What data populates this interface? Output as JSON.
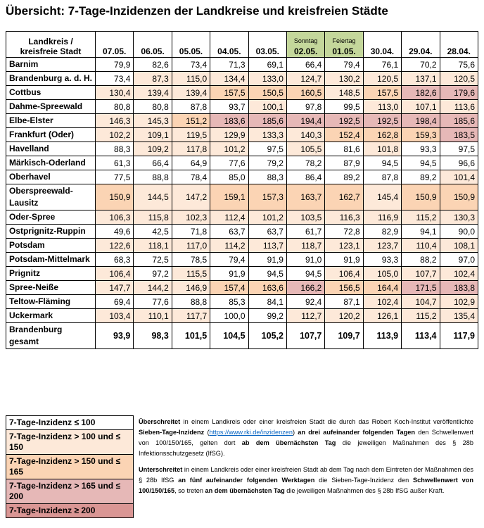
{
  "title": "Übersicht: 7-Tage-Inzidenzen der Landkreise und kreisfreien Städte",
  "table": {
    "header": "Landkreis / kreisfreie Stadt",
    "columns": [
      {
        "date": "07.05."
      },
      {
        "date": "06.05."
      },
      {
        "date": "05.05."
      },
      {
        "date": "04.05."
      },
      {
        "date": "03.05."
      },
      {
        "date": "02.05.",
        "note": "Sonntag",
        "color": "#c4d79b"
      },
      {
        "date": "01.05.",
        "note": "Feiertag",
        "color": "#c4d79b"
      },
      {
        "date": "30.04."
      },
      {
        "date": "29.04."
      },
      {
        "date": "28.04."
      }
    ],
    "rows": [
      {
        "name": "Barnim",
        "values": [
          "79,9",
          "82,6",
          "73,4",
          "71,3",
          "69,1",
          "66,4",
          "79,4",
          "76,1",
          "70,2",
          "75,6"
        ],
        "shades": [
          0,
          0,
          0,
          0,
          0,
          0,
          0,
          0,
          0,
          0
        ]
      },
      {
        "name": "Brandenburg a. d. H.",
        "values": [
          "73,4",
          "87,3",
          "115,0",
          "134,4",
          "133,0",
          "124,7",
          "130,2",
          "120,5",
          "137,1",
          "120,5"
        ],
        "shades": [
          0,
          1,
          1,
          1,
          1,
          1,
          1,
          1,
          1,
          1
        ]
      },
      {
        "name": "Cottbus",
        "values": [
          "130,4",
          "139,4",
          "139,4",
          "157,5",
          "150,5",
          "160,5",
          "148,5",
          "157,5",
          "182,6",
          "179,6"
        ],
        "shades": [
          1,
          1,
          1,
          2,
          2,
          2,
          1,
          2,
          3,
          3
        ]
      },
      {
        "name": "Dahme-Spreewald",
        "values": [
          "80,8",
          "80,8",
          "87,8",
          "93,7",
          "100,1",
          "97,8",
          "99,5",
          "113,0",
          "107,1",
          "113,6"
        ],
        "shades": [
          0,
          0,
          0,
          0,
          1,
          0,
          0,
          1,
          1,
          1
        ]
      },
      {
        "name": "Elbe-Elster",
        "values": [
          "146,3",
          "145,3",
          "151,2",
          "183,6",
          "185,6",
          "194,4",
          "192,5",
          "192,5",
          "198,4",
          "185,6"
        ],
        "shades": [
          1,
          1,
          2,
          3,
          3,
          3,
          3,
          3,
          3,
          3
        ]
      },
      {
        "name": "Frankfurt (Oder)",
        "values": [
          "102,2",
          "109,1",
          "119,5",
          "129,9",
          "133,3",
          "140,3",
          "152,4",
          "162,8",
          "159,3",
          "183,5"
        ],
        "shades": [
          1,
          1,
          1,
          1,
          1,
          1,
          2,
          2,
          2,
          3
        ]
      },
      {
        "name": "Havelland",
        "values": [
          "88,3",
          "109,2",
          "117,8",
          "101,2",
          "97,5",
          "105,5",
          "81,6",
          "101,8",
          "93,3",
          "97,5"
        ],
        "shades": [
          0,
          1,
          1,
          1,
          0,
          1,
          0,
          1,
          0,
          0
        ]
      },
      {
        "name": "Märkisch-Oderland",
        "values": [
          "61,3",
          "66,4",
          "64,9",
          "77,6",
          "79,2",
          "78,2",
          "87,9",
          "94,5",
          "94,5",
          "96,6"
        ],
        "shades": [
          0,
          0,
          0,
          0,
          0,
          0,
          0,
          0,
          0,
          0
        ]
      },
      {
        "name": "Oberhavel",
        "values": [
          "77,5",
          "88,8",
          "78,4",
          "85,0",
          "88,3",
          "86,4",
          "89,2",
          "87,8",
          "89,2",
          "101,4"
        ],
        "shades": [
          0,
          0,
          0,
          0,
          0,
          0,
          0,
          0,
          0,
          1
        ]
      },
      {
        "name": "Oberspreewald-Lausitz",
        "values": [
          "150,9",
          "144,5",
          "147,2",
          "159,1",
          "157,3",
          "163,7",
          "162,7",
          "145,4",
          "150,9",
          "150,9"
        ],
        "shades": [
          2,
          1,
          1,
          2,
          2,
          2,
          2,
          1,
          2,
          2
        ]
      },
      {
        "name": "Oder-Spree",
        "values": [
          "106,3",
          "115,8",
          "102,3",
          "112,4",
          "101,2",
          "103,5",
          "116,3",
          "116,9",
          "115,2",
          "130,3"
        ],
        "shades": [
          1,
          1,
          1,
          1,
          1,
          1,
          1,
          1,
          1,
          1
        ]
      },
      {
        "name": "Ostprignitz-Ruppin",
        "values": [
          "49,6",
          "42,5",
          "71,8",
          "63,7",
          "63,7",
          "61,7",
          "72,8",
          "82,9",
          "94,1",
          "90,0"
        ],
        "shades": [
          0,
          0,
          0,
          0,
          0,
          0,
          0,
          0,
          0,
          0
        ]
      },
      {
        "name": "Potsdam",
        "values": [
          "122,6",
          "118,1",
          "117,0",
          "114,2",
          "113,7",
          "118,7",
          "123,1",
          "123,7",
          "110,4",
          "108,1"
        ],
        "shades": [
          1,
          1,
          1,
          1,
          1,
          1,
          1,
          1,
          1,
          1
        ]
      },
      {
        "name": "Potsdam-Mittelmark",
        "values": [
          "68,3",
          "72,5",
          "78,5",
          "79,4",
          "91,9",
          "91,0",
          "91,9",
          "93,3",
          "88,2",
          "97,0"
        ],
        "shades": [
          0,
          0,
          0,
          0,
          0,
          0,
          0,
          0,
          0,
          0
        ]
      },
      {
        "name": "Prignitz",
        "values": [
          "106,4",
          "97,2",
          "115,5",
          "91,9",
          "94,5",
          "94,5",
          "106,4",
          "105,0",
          "107,7",
          "102,4"
        ],
        "shades": [
          1,
          0,
          1,
          0,
          0,
          0,
          1,
          1,
          1,
          1
        ]
      },
      {
        "name": "Spree-Neiße",
        "values": [
          "147,7",
          "144,2",
          "146,9",
          "157,4",
          "163,6",
          "166,2",
          "156,5",
          "164,4",
          "171,5",
          "183,8"
        ],
        "shades": [
          1,
          1,
          1,
          2,
          2,
          3,
          2,
          2,
          3,
          3
        ]
      },
      {
        "name": "Teltow-Fläming",
        "values": [
          "69,4",
          "77,6",
          "88,8",
          "85,3",
          "84,1",
          "92,4",
          "87,1",
          "102,4",
          "104,7",
          "102,9"
        ],
        "shades": [
          0,
          0,
          0,
          0,
          0,
          0,
          0,
          1,
          1,
          1
        ]
      },
      {
        "name": "Uckermark",
        "values": [
          "103,4",
          "110,1",
          "117,7",
          "100,0",
          "99,2",
          "112,7",
          "120,2",
          "126,1",
          "115,2",
          "135,4"
        ],
        "shades": [
          1,
          1,
          1,
          0,
          0,
          1,
          1,
          1,
          1,
          1
        ]
      },
      {
        "name": "Brandenburg gesamt",
        "bold": true,
        "values": [
          "93,9",
          "98,3",
          "101,5",
          "104,5",
          "105,2",
          "107,7",
          "109,7",
          "113,9",
          "113,4",
          "117,9"
        ],
        "shades": [
          0,
          0,
          0,
          0,
          0,
          0,
          0,
          0,
          0,
          0
        ]
      }
    ]
  },
  "legend": [
    {
      "label": "7-Tage-Inzidenz ≤ 100",
      "color": "#ffffff"
    },
    {
      "label": "7-Tage-Inzidenz > 100 und ≤ 150",
      "color": "#fde9d9"
    },
    {
      "label": "7-Tage-Inzidenz > 150 und ≤ 165",
      "color": "#fbd4b4"
    },
    {
      "label": "7-Tage-Inzidenz > 165 und ≤ 200",
      "color": "#e6b8b7"
    },
    {
      "label": "7-Tage-Inzidenz ≥ 200",
      "color": "#da9694"
    }
  ],
  "notes": [
    [
      {
        "text": "Überschreitet",
        "bold": true
      },
      {
        "text": " in einem Landkreis oder einer kreisfreien Stadt die durch das Robert Koch-Institut veröffentlichte "
      },
      {
        "text": "Sieben-Tage-Inzidenz",
        "bold": true
      },
      {
        "text": " ("
      },
      {
        "text": "https://www.rki.de/inzidenzen",
        "link": true
      },
      {
        "text": ") "
      },
      {
        "text": "an drei aufeinander folgenden Tagen",
        "bold": true
      },
      {
        "text": " den Schwellenwert von 100/150/165, gelten dort "
      },
      {
        "text": "ab dem übernächsten Tag",
        "bold": true
      },
      {
        "text": " die jeweiligen Maßnahmen des § 28b Infektionsschutzgesetz (IfSG)."
      }
    ],
    [
      {
        "text": "Unterschreitet",
        "bold": true
      },
      {
        "text": " in einem Landkreis oder einer kreisfreien Stadt ab dem Tag nach dem Eintreten der Maßnahmen des § 28b IfSG "
      },
      {
        "text": "an fünf aufeinander folgenden Werktagen",
        "bold": true
      },
      {
        "text": " die Sieben-Tage-Inzidenz den "
      },
      {
        "text": "Schwellenwert von 100/150/165",
        "bold": true
      },
      {
        "text": ", so treten "
      },
      {
        "text": "an dem übernächsten Tag",
        "bold": true
      },
      {
        "text": " die jeweiligen Maßnahmen des § 28b IfSG außer Kraft."
      }
    ]
  ]
}
